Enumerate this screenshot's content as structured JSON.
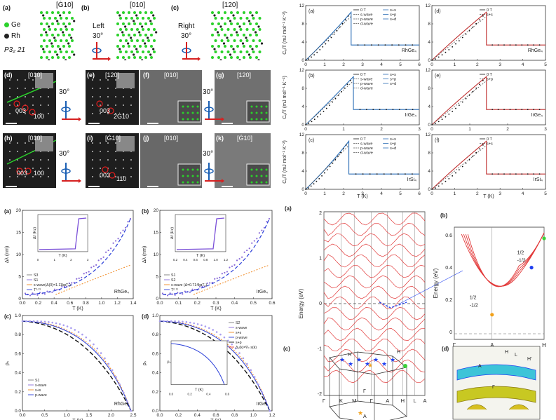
{
  "crystal": {
    "panels": [
      {
        "label": "(a)",
        "dir": "[Ġ10]"
      },
      {
        "label": "(b)",
        "dir": "[010]"
      },
      {
        "label": "(c)",
        "dir": "[120]"
      }
    ],
    "legend": {
      "ge": "Ge",
      "rh": "Rh",
      "space_group": "P3₂ 21"
    },
    "rotation": {
      "left": "Left",
      "right": "Right",
      "angle": "30°"
    },
    "colors": {
      "ge": "#2bd12b",
      "rh": "#222222"
    }
  },
  "diffraction": {
    "panels": [
      {
        "label": "(d)",
        "dir": "[010]",
        "spots": [
          "003",
          "100"
        ]
      },
      {
        "label": "(e)",
        "dir": "[120]",
        "spots": [
          "003",
          "2Ġ10"
        ]
      },
      {
        "label": "(f)",
        "dir": "[010]"
      },
      {
        "label": "(g)",
        "dir": "[120]"
      },
      {
        "label": "(h)",
        "dir": "[010]",
        "spots": [
          "003",
          "100"
        ]
      },
      {
        "label": "(i)",
        "dir": "[Ġ10]",
        "spots": [
          "003",
          "110"
        ]
      },
      {
        "label": "(j)",
        "dir": "[010]"
      },
      {
        "label": "(k)",
        "dir": "[Ġ10]"
      }
    ],
    "angle": "30°"
  },
  "specific_heat": {
    "ylabel": "Cₑ/T (mJ mol⁻¹ K⁻²)",
    "xlabel": "T (K)",
    "panels": [
      {
        "label": "(a)",
        "sample": "RhGe₄",
        "legend": [
          "0 T",
          "s-wave",
          "p-wave",
          "d-wave",
          "s+s",
          "s+p",
          "s+d"
        ],
        "yticks": [
          "0",
          "4",
          "8",
          "12"
        ],
        "xticks": [
          "0",
          "1",
          "2",
          "3",
          "4",
          "5",
          "6"
        ]
      },
      {
        "label": "(b)",
        "sample": "IrGe₄",
        "legend": [
          "0 T",
          "s-wave",
          "p-wave",
          "d-wave",
          "s+s",
          "s+p",
          "s+d"
        ],
        "yticks": [
          "0",
          "4",
          "8",
          "12"
        ],
        "xticks": [
          "0",
          "1",
          "2",
          "3"
        ]
      },
      {
        "label": "(c)",
        "sample": "IrSi₄",
        "legend": [
          "0 T",
          "s-wave",
          "p-wave",
          "d-wave",
          "s+s",
          "s+p",
          "s+d"
        ],
        "yticks": [
          "0",
          "4",
          "8",
          "12"
        ],
        "xticks": [
          "0",
          "1",
          "2",
          "3",
          "4",
          "5",
          "6"
        ]
      },
      {
        "label": "(d)",
        "sample": "RhGe₄",
        "legend": [
          "0 T",
          "s+s"
        ],
        "yticks": [
          "0",
          "4",
          "8",
          "12"
        ],
        "xticks": [
          "0",
          "1",
          "2",
          "3",
          "4",
          "5"
        ]
      },
      {
        "label": "(e)",
        "sample": "IrGe₄",
        "legend": [
          "0 T",
          "s+p"
        ],
        "yticks": [
          "0",
          "4",
          "8",
          "12"
        ],
        "xticks": [
          "0",
          "1",
          "2",
          "3"
        ]
      },
      {
        "label": "(f)",
        "sample": "IrSi₄",
        "legend": [
          "0 T",
          "s+s"
        ],
        "yticks": [
          "0",
          "4",
          "8",
          "12"
        ],
        "xticks": [
          "0",
          "1",
          "2",
          "3",
          "4",
          "5"
        ]
      }
    ]
  },
  "penetration": {
    "panels": [
      {
        "label": "(a)",
        "sample": "RhGe₄",
        "ylabel": "Δλ (nm)",
        "xlabel": "T (K)",
        "legend": [
          "S3",
          "S1",
          "s-wave(Δ(0)=1.11kʙTₑ)",
          "T²·³¹"
        ],
        "yticks": [
          "0",
          "5",
          "10",
          "15",
          "20"
        ],
        "xticks": [
          "0.0",
          "0.2",
          "0.4",
          "0.6",
          "0.8",
          "1.0",
          "1.2",
          "1.4"
        ],
        "inset": {
          "ylabel": "Δf (Hz)",
          "xlabel": "T (K)",
          "yticks": [
            "0",
            "100",
            "200",
            "300",
            "400"
          ],
          "xticks": [
            "0",
            "1",
            "2",
            "3"
          ]
        }
      },
      {
        "label": "(b)",
        "sample": "IrGe₄",
        "ylabel": "Δλ (nm)",
        "xlabel": "T (K)",
        "legend": [
          "S1",
          "S2",
          "s-wave (Δ=0.714kʙTₑ)",
          "T²·¹¹"
        ],
        "yticks": [
          "0",
          "5",
          "10",
          "15",
          "20"
        ],
        "xticks": [
          "0.0",
          "0.1",
          "0.2",
          "0.3",
          "0.4",
          "0.5",
          "0.6"
        ],
        "inset": {
          "ylabel": "Δf (Hz)",
          "xlabel": "T (K)",
          "yticks": [
            "0",
            "100",
            "200",
            "300",
            "400"
          ],
          "xticks": [
            "0.2",
            "0.4",
            "0.6",
            "0.8",
            "1.0",
            "1.2"
          ]
        }
      },
      {
        "label": "(c)",
        "sample": "RhGe₄",
        "ylabel": "ρₛ",
        "xlabel": "T (K)",
        "legend": [
          "S1",
          "s-wave",
          "s+s",
          "p-wave"
        ],
        "yticks": [
          "0.0",
          "0.2",
          "0.4",
          "0.6",
          "0.8",
          "1.0"
        ],
        "xticks": [
          "0.0",
          "0.5",
          "1.0",
          "1.5",
          "2.0",
          "2.5"
        ]
      },
      {
        "label": "(d)",
        "sample": "IrGe₄",
        "ylabel": "ρₛ",
        "xlabel": "T (K)",
        "legend": [
          "S2",
          "s-wave",
          "s+s",
          "p-wave",
          "s+p",
          "Δ₁(k)=∇ₛ⋅s(k)"
        ],
        "yticks": [
          "0.0",
          "0.2",
          "0.4",
          "0.6",
          "0.8",
          "1.0"
        ],
        "xticks": [
          "0.0",
          "0.2",
          "0.4",
          "0.6",
          "0.8",
          "1.0",
          "1.2"
        ],
        "inset": {
          "ylabel": "ρₛ",
          "xlabel": "T (K)",
          "xticks": [
            "0.0",
            "0.2",
            "0.4",
            "0.6"
          ]
        }
      }
    ]
  },
  "bands": {
    "panel_a": {
      "label": "(a)",
      "ylabel": "Energy (eV)",
      "yticks": [
        "2",
        "1",
        "0",
        "-1",
        "-2"
      ],
      "kpoints": [
        "Γ",
        "K",
        "M",
        "Γ",
        "A",
        "H",
        "L",
        "A"
      ]
    },
    "panel_b": {
      "label": "(b)",
      "ylabel": "Energy (eV)",
      "yticks": [
        "0.6",
        "0.4",
        "0.2",
        "0"
      ],
      "kpoints": [
        "Γ",
        "A",
        "H"
      ],
      "annotations": [
        "1/2",
        "-1/2",
        "1/2",
        "-1/2"
      ]
    },
    "panel_c": {
      "label": "(c)",
      "points": [
        "H'",
        "H",
        "Γ",
        "A"
      ]
    },
    "panel_d": {
      "label": "(d)",
      "points": [
        "H",
        "L",
        "H'",
        "A",
        "Γ"
      ]
    },
    "colors": {
      "band": "#e23a3a",
      "fermi": "#444444",
      "highlight": "#1f3ff0"
    }
  }
}
